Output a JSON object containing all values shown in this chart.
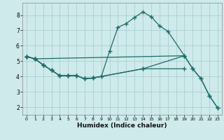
{
  "background_color": "#ceeaea",
  "grid_color": "#aad0d0",
  "line_color": "#1a6b6b",
  "xlabel": "Humidex (Indice chaleur)",
  "xlim": [
    -0.5,
    23.5
  ],
  "ylim": [
    1.5,
    8.8
  ],
  "yticks": [
    2,
    3,
    4,
    5,
    6,
    7,
    8
  ],
  "xticks": [
    0,
    1,
    2,
    3,
    4,
    5,
    6,
    7,
    8,
    9,
    10,
    11,
    12,
    13,
    14,
    15,
    16,
    17,
    18,
    19,
    20,
    21,
    22,
    23
  ],
  "lines_data": {
    "line1_x": [
      0,
      1,
      2,
      3,
      4,
      5,
      6,
      7,
      8,
      9,
      10,
      11,
      12,
      13,
      14,
      15,
      16,
      17,
      19
    ],
    "line1_y": [
      5.3,
      5.15,
      4.75,
      4.4,
      4.05,
      4.05,
      4.05,
      3.85,
      3.9,
      4.0,
      5.65,
      7.2,
      7.45,
      7.85,
      8.2,
      7.9,
      7.3,
      6.95,
      5.35
    ],
    "line2_x": [
      0,
      1,
      2,
      3,
      4,
      5,
      6,
      7,
      8,
      9,
      14,
      19
    ],
    "line2_y": [
      5.3,
      5.15,
      4.75,
      4.4,
      4.05,
      4.05,
      4.05,
      3.85,
      3.9,
      4.0,
      4.5,
      4.5
    ],
    "line3_x": [
      0,
      1,
      19,
      20,
      21,
      22,
      23
    ],
    "line3_y": [
      5.3,
      5.15,
      5.35,
      4.5,
      3.85,
      2.75,
      1.95
    ],
    "line4_x": [
      0,
      1,
      2,
      3,
      4,
      5,
      6,
      7,
      8,
      14,
      19,
      20,
      21,
      22,
      23
    ],
    "line4_y": [
      5.3,
      5.15,
      4.75,
      4.4,
      4.05,
      4.05,
      4.05,
      3.85,
      3.9,
      4.5,
      5.35,
      4.5,
      3.85,
      2.75,
      1.95
    ]
  }
}
